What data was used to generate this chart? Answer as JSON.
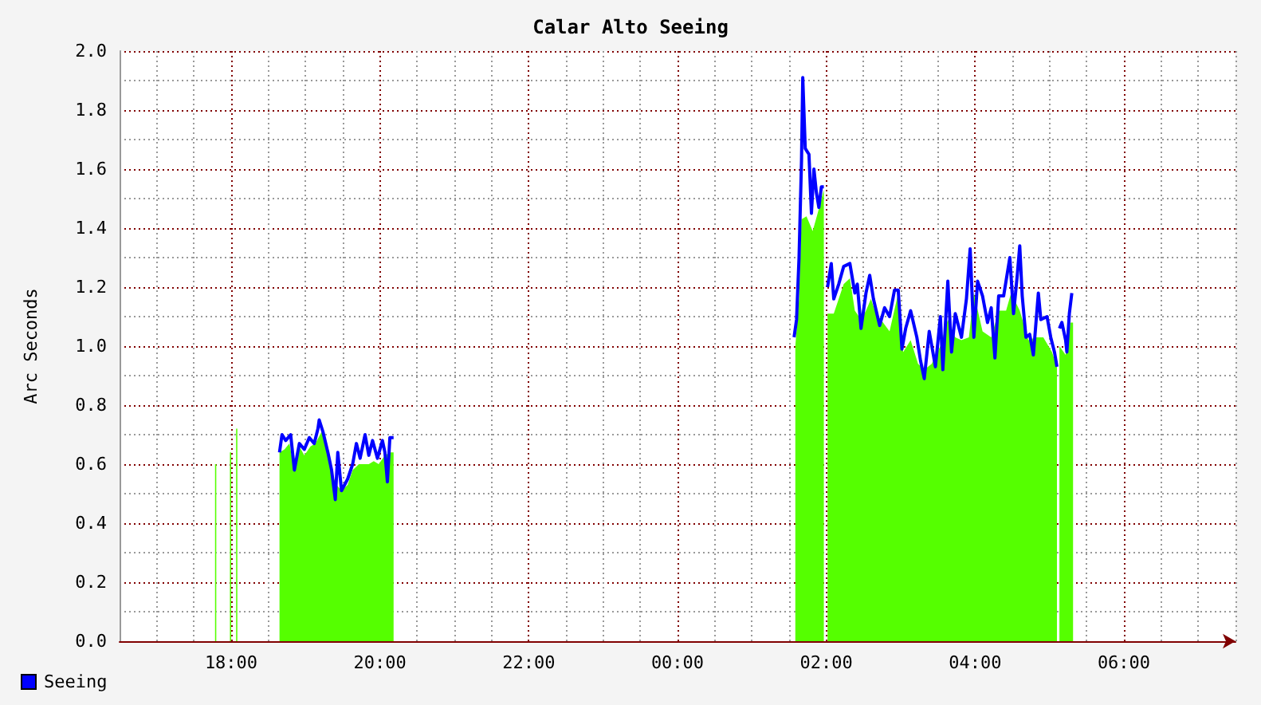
{
  "chart_data": {
    "type": "area",
    "title": "Calar Alto Seeing",
    "ylabel": "Arc Seconds",
    "xlim": [
      "2000-01-01T16:30",
      "2000-01-02T07:30"
    ],
    "xticks": [
      {
        "value": "2000-01-01T16:30",
        "label": null
      },
      {
        "value": "2000-01-01T17:00",
        "label": null
      },
      {
        "value": "2000-01-01T17:30",
        "label": null
      },
      {
        "value": "2000-01-01T18:00",
        "label": "18:00"
      },
      {
        "value": "2000-01-01T18:30",
        "label": null
      },
      {
        "value": "2000-01-01T19:00",
        "label": null
      },
      {
        "value": "2000-01-01T19:30",
        "label": null
      },
      {
        "value": "2000-01-01T20:00",
        "label": "20:00"
      },
      {
        "value": "2000-01-01T20:30",
        "label": null
      },
      {
        "value": "2000-01-01T21:00",
        "label": null
      },
      {
        "value": "2000-01-01T21:30",
        "label": null
      },
      {
        "value": "2000-01-01T22:00",
        "label": "22:00"
      },
      {
        "value": "2000-01-01T22:30",
        "label": null
      },
      {
        "value": "2000-01-01T23:00",
        "label": null
      },
      {
        "value": "2000-01-01T23:30",
        "label": null
      },
      {
        "value": "2000-01-02T00:00",
        "label": "00:00"
      },
      {
        "value": "2000-01-02T00:30",
        "label": null
      },
      {
        "value": "2000-01-02T01:00",
        "label": null
      },
      {
        "value": "2000-01-02T01:30",
        "label": null
      },
      {
        "value": "2000-01-02T02:00",
        "label": "02:00"
      },
      {
        "value": "2000-01-02T02:30",
        "label": null
      },
      {
        "value": "2000-01-02T03:00",
        "label": null
      },
      {
        "value": "2000-01-02T03:30",
        "label": null
      },
      {
        "value": "2000-01-02T04:00",
        "label": "04:00"
      },
      {
        "value": "2000-01-02T04:30",
        "label": null
      },
      {
        "value": "2000-01-02T05:00",
        "label": null
      },
      {
        "value": "2000-01-02T05:30",
        "label": null
      },
      {
        "value": "2000-01-02T06:00",
        "label": "06:00"
      },
      {
        "value": "2000-01-02T06:30",
        "label": null
      },
      {
        "value": "2000-01-02T07:00",
        "label": null
      },
      {
        "value": "2000-01-02T07:30",
        "label": null
      }
    ],
    "ylim": [
      0,
      2
    ],
    "yticks": [
      {
        "value": 0,
        "label": "0.0"
      },
      {
        "value": 0.1,
        "label": null
      },
      {
        "value": 0.2,
        "label": "0.2"
      },
      {
        "value": 0.3,
        "label": null
      },
      {
        "value": 0.4,
        "label": "0.4"
      },
      {
        "value": 0.5,
        "label": null
      },
      {
        "value": 0.6,
        "label": "0.6"
      },
      {
        "value": 0.7,
        "label": null
      },
      {
        "value": 0.8,
        "label": "0.8"
      },
      {
        "value": 0.9,
        "label": null
      },
      {
        "value": 1,
        "label": "1.0"
      },
      {
        "value": 1.1,
        "label": null
      },
      {
        "value": 1.2,
        "label": "1.2"
      },
      {
        "value": 1.3,
        "label": null
      },
      {
        "value": 1.4,
        "label": "1.4"
      },
      {
        "value": 1.5,
        "label": null
      },
      {
        "value": 1.6,
        "label": "1.6"
      },
      {
        "value": 1.7,
        "label": null
      },
      {
        "value": 1.8,
        "label": "1.8"
      },
      {
        "value": 1.9,
        "label": null
      },
      {
        "value": 2,
        "label": "2.0"
      }
    ],
    "grid": true,
    "legend": "bottom left",
    "series": [
      {
        "type": "area",
        "color": "#55ff00",
        "x": [
          "2000-01-01T17:47",
          "2000-01-01T17:48",
          "2000-01-01T17:49",
          "2000-01-01T17:59",
          "2000-01-01T18:00",
          "2000-01-01T18:01",
          "2000-01-01T18:04",
          "2000-01-01T18:05",
          "2000-01-01T18:06",
          "2000-01-01T18:39",
          "2000-01-01T18:43",
          "2000-01-01T18:47",
          "2000-01-01T18:51",
          "2000-01-01T18:55",
          "2000-01-01T18:59",
          "2000-01-01T19:04",
          "2000-01-01T19:08",
          "2000-01-01T19:13",
          "2000-01-01T19:17",
          "2000-01-01T19:21",
          "2000-01-01T19:25",
          "2000-01-01T19:29",
          "2000-01-01T19:34",
          "2000-01-01T19:38",
          "2000-01-01T19:43",
          "2000-01-01T19:47",
          "2000-01-01T19:51",
          "2000-01-01T19:55",
          "2000-01-01T19:59",
          "2000-01-01T20:04",
          "2000-01-01T20:08",
          "2000-01-01T20:11",
          "2000-01-01T20:12",
          "2000-01-02T01:35",
          "2000-01-02T01:38",
          "2000-01-02T01:40",
          "2000-01-02T01:44",
          "2000-01-02T01:49",
          "2000-01-02T01:53",
          "2000-01-02T01:58",
          "2000-01-02T01:59",
          "2000-01-02T02:01",
          "2000-01-02T02:06",
          "2000-01-02T02:10",
          "2000-01-02T02:14",
          "2000-01-02T02:19",
          "2000-01-02T02:23",
          "2000-01-02T02:28",
          "2000-01-02T02:32",
          "2000-01-02T02:36",
          "2000-01-02T02:40",
          "2000-01-02T02:44",
          "2000-01-02T02:51",
          "2000-01-02T02:58",
          "2000-01-02T03:02",
          "2000-01-02T03:08",
          "2000-01-02T03:14",
          "2000-01-02T03:19",
          "2000-01-02T03:25",
          "2000-01-02T03:32",
          "2000-01-02T03:38",
          "2000-01-02T03:44",
          "2000-01-02T03:49",
          "2000-01-02T03:55",
          "2000-01-02T03:59",
          "2000-01-02T04:06",
          "2000-01-02T04:13",
          "2000-01-02T04:19",
          "2000-01-02T04:25",
          "2000-01-02T04:29",
          "2000-01-02T04:36",
          "2000-01-02T04:43",
          "2000-01-02T04:49",
          "2000-01-02T04:55",
          "2000-01-02T05:02",
          "2000-01-02T05:06",
          "2000-01-02T05:07",
          "2000-01-02T05:08",
          "2000-01-02T05:13",
          "2000-01-02T05:17",
          "2000-01-02T05:19"
        ],
        "values": [
          0.6,
          0.6,
          null,
          0.64,
          0.64,
          null,
          0.72,
          0.72,
          null,
          0.64,
          0.65,
          0.67,
          0.58,
          0.66,
          0.63,
          0.66,
          0.67,
          0.71,
          0.67,
          0.57,
          0.53,
          0.51,
          0.53,
          0.58,
          0.6,
          0.6,
          0.6,
          0.61,
          0.6,
          0.63,
          0.64,
          0.64,
          null,
          1.0,
          1.16,
          1.43,
          1.44,
          1.39,
          1.45,
          1.53,
          null,
          1.11,
          1.11,
          1.16,
          1.21,
          1.23,
          1.12,
          1.09,
          1.12,
          1.16,
          1.11,
          1.09,
          1.05,
          1.18,
          0.98,
          1.02,
          0.94,
          0.92,
          0.94,
          1.0,
          1.09,
          1.03,
          1.02,
          1.03,
          1.18,
          1.05,
          1.03,
          1.12,
          1.12,
          1.18,
          1.12,
          1.02,
          1.03,
          1.03,
          0.98,
          0.93,
          null,
          1.0,
          0.97,
          1.08,
          1.08
        ]
      },
      {
        "type": "line",
        "name": "Seeing",
        "color": "#0000ff",
        "x": [
          "2000-01-01T18:39",
          "2000-01-01T18:41",
          "2000-01-01T18:44",
          "2000-01-01T18:48",
          "2000-01-01T18:51",
          "2000-01-01T18:55",
          "2000-01-01T18:59",
          "2000-01-01T19:03",
          "2000-01-01T19:07",
          "2000-01-01T19:10",
          "2000-01-01T19:11",
          "2000-01-01T19:14",
          "2000-01-01T19:18",
          "2000-01-01T19:21",
          "2000-01-01T19:24",
          "2000-01-01T19:26",
          "2000-01-01T19:29",
          "2000-01-01T19:34",
          "2000-01-01T19:38",
          "2000-01-01T19:41",
          "2000-01-01T19:44",
          "2000-01-01T19:48",
          "2000-01-01T19:51",
          "2000-01-01T19:54",
          "2000-01-01T19:58",
          "2000-01-01T20:02",
          "2000-01-01T20:04",
          "2000-01-01T20:06",
          "2000-01-01T20:08",
          "2000-01-01T20:11",
          "2000-01-01T20:12",
          "2000-01-02T01:34",
          "2000-01-02T01:36",
          "2000-01-02T01:38",
          "2000-01-02T01:40",
          "2000-01-02T01:41",
          "2000-01-02T01:43",
          "2000-01-02T01:46",
          "2000-01-02T01:48",
          "2000-01-02T01:50",
          "2000-01-02T01:52",
          "2000-01-02T01:54",
          "2000-01-02T01:56",
          "2000-01-02T01:58",
          "2000-01-02T01:59",
          "2000-01-02T02:01",
          "2000-01-02T02:04",
          "2000-01-02T02:06",
          "2000-01-02T02:10",
          "2000-01-02T02:14",
          "2000-01-02T02:19",
          "2000-01-02T02:23",
          "2000-01-02T02:25",
          "2000-01-02T02:28",
          "2000-01-02T02:32",
          "2000-01-02T02:35",
          "2000-01-02T02:38",
          "2000-01-02T02:43",
          "2000-01-02T02:47",
          "2000-01-02T02:51",
          "2000-01-02T02:55",
          "2000-01-02T02:58",
          "2000-01-02T03:01",
          "2000-01-02T03:04",
          "2000-01-02T03:08",
          "2000-01-02T03:13",
          "2000-01-02T03:16",
          "2000-01-02T03:19",
          "2000-01-02T03:23",
          "2000-01-02T03:28",
          "2000-01-02T03:32",
          "2000-01-02T03:34",
          "2000-01-02T03:38",
          "2000-01-02T03:41",
          "2000-01-02T03:44",
          "2000-01-02T03:49",
          "2000-01-02T03:53",
          "2000-01-02T03:56",
          "2000-01-02T03:59",
          "2000-01-02T04:02",
          "2000-01-02T04:06",
          "2000-01-02T04:10",
          "2000-01-02T04:13",
          "2000-01-02T04:16",
          "2000-01-02T04:19",
          "2000-01-02T04:23",
          "2000-01-02T04:28",
          "2000-01-02T04:31",
          "2000-01-02T04:34",
          "2000-01-02T04:36",
          "2000-01-02T04:38",
          "2000-01-02T04:41",
          "2000-01-02T04:44",
          "2000-01-02T04:47",
          "2000-01-02T04:51",
          "2000-01-02T04:53",
          "2000-01-02T04:58",
          "2000-01-02T05:01",
          "2000-01-02T05:04",
          "2000-01-02T05:06",
          "2000-01-02T05:07",
          "2000-01-02T05:08",
          "2000-01-02T05:10",
          "2000-01-02T05:13",
          "2000-01-02T05:14",
          "2000-01-02T05:16",
          "2000-01-02T05:18"
        ],
        "values": [
          0.64,
          0.7,
          0.68,
          0.7,
          0.58,
          0.67,
          0.65,
          0.69,
          0.67,
          0.72,
          0.75,
          0.71,
          0.64,
          0.58,
          0.48,
          0.64,
          0.51,
          0.55,
          0.6,
          0.67,
          0.62,
          0.7,
          0.63,
          0.68,
          0.62,
          0.68,
          0.64,
          0.54,
          0.69,
          0.69,
          null,
          1.03,
          1.09,
          1.3,
          1.63,
          1.91,
          1.67,
          1.65,
          1.45,
          1.6,
          1.52,
          1.47,
          1.54,
          1.54,
          null,
          1.2,
          1.28,
          1.16,
          1.21,
          1.27,
          1.28,
          1.18,
          1.21,
          1.06,
          1.18,
          1.24,
          1.16,
          1.07,
          1.13,
          1.1,
          1.19,
          1.19,
          0.99,
          1.06,
          1.12,
          1.03,
          0.95,
          0.89,
          1.05,
          0.93,
          1.1,
          0.92,
          1.22,
          0.98,
          1.11,
          1.03,
          1.16,
          1.33,
          1.03,
          1.22,
          1.17,
          1.08,
          1.13,
          0.96,
          1.17,
          1.17,
          1.3,
          1.11,
          1.24,
          1.34,
          1.17,
          1.03,
          1.04,
          0.97,
          1.18,
          1.09,
          1.1,
          1.03,
          0.98,
          0.93,
          null,
          1.06,
          1.08,
          1.02,
          0.98,
          1.11,
          1.18
        ]
      }
    ]
  }
}
